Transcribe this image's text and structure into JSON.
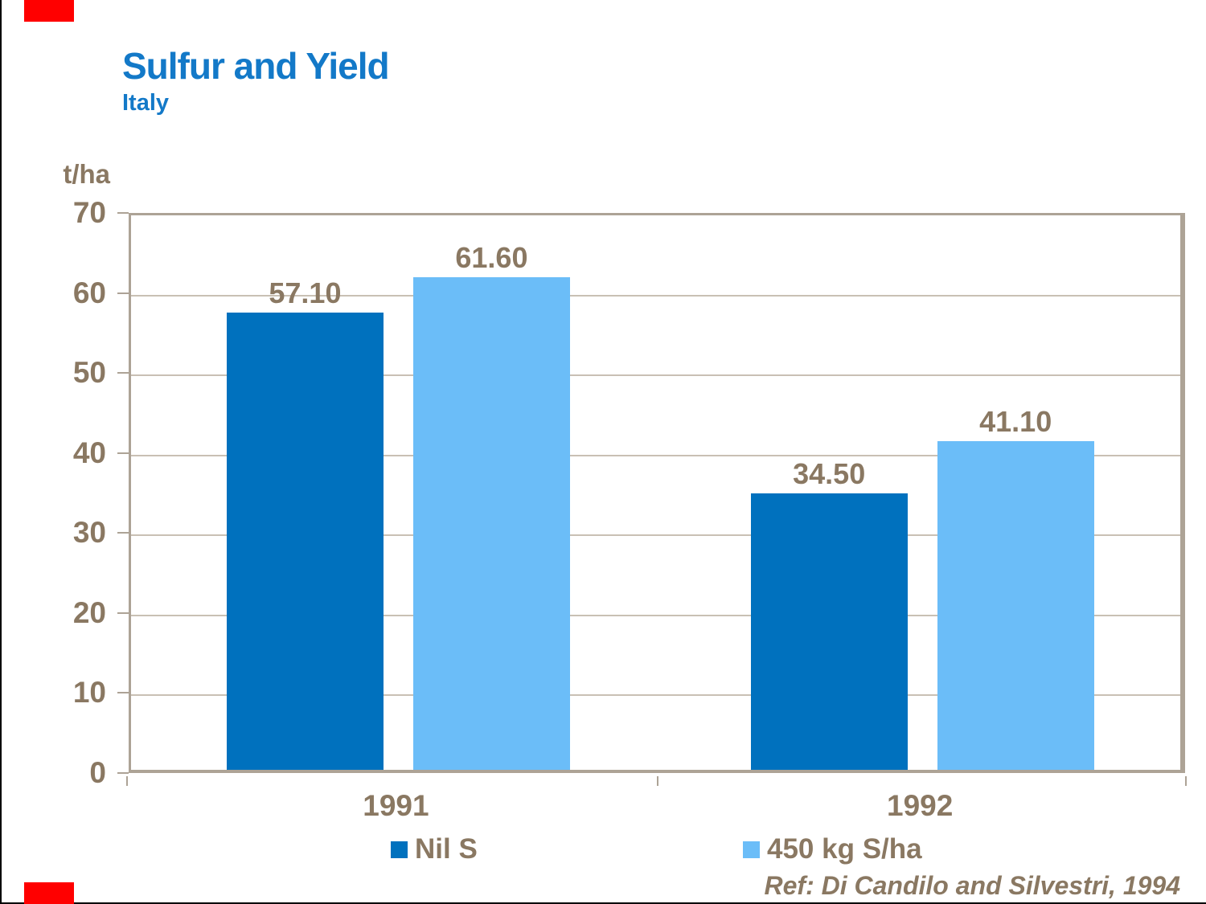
{
  "page": {
    "title": "Sulfur and Yield",
    "subtitle": "Italy"
  },
  "chart_data": {
    "type": "bar",
    "title": "Sulfur and Yield",
    "subtitle": "Italy",
    "unit_label": "t/ha",
    "categories": [
      "1991",
      "1992"
    ],
    "series": [
      {
        "name": "Nil S",
        "color": "#0071BE",
        "values": [
          57.1,
          34.5
        ]
      },
      {
        "name": "450 kg S/ha",
        "color": "#6BBDF8",
        "values": [
          61.6,
          41.1
        ]
      }
    ],
    "value_label_format": "2-decimals",
    "value_labels": [
      [
        "57.10",
        "34.50"
      ],
      [
        "61.60",
        "41.10"
      ]
    ],
    "ylim": [
      0,
      70
    ],
    "yticks": [
      0,
      10,
      20,
      30,
      40,
      50,
      60,
      70
    ],
    "grid": true,
    "legend_position": "bottom",
    "annotation": "Ref: Di Candilo and Silvestri, 1994"
  },
  "colors": {
    "title_blue": "#1379C8",
    "text_brown": "#8A7862",
    "plot_border_tan": "#ADA396",
    "gridline_tan": "#C9C0B4",
    "accent_red": "#FF0000",
    "edge_black": "#000000",
    "background": "#FFFFFF"
  }
}
